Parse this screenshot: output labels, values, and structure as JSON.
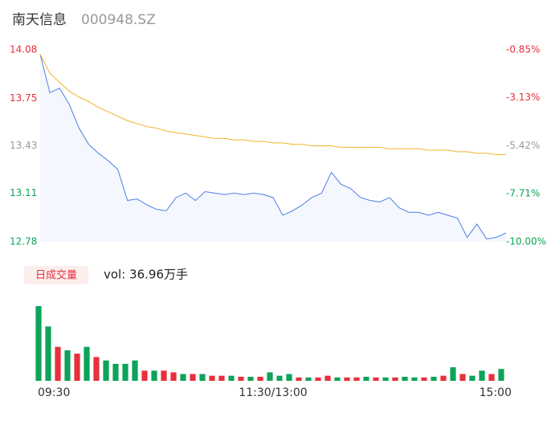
{
  "header": {
    "name": "南天信息",
    "code": "000948.SZ"
  },
  "chart_data": [
    {
      "type": "line",
      "categories": [
        "09:30",
        null,
        null,
        null,
        null,
        null,
        null,
        null,
        null,
        null,
        null,
        null,
        null,
        null,
        null,
        null,
        null,
        null,
        null,
        null,
        null,
        null,
        null,
        null,
        "11:30/13:00",
        null,
        null,
        null,
        null,
        null,
        null,
        null,
        null,
        null,
        null,
        null,
        null,
        null,
        null,
        null,
        null,
        null,
        null,
        null,
        null,
        null,
        null,
        null,
        "15:00"
      ],
      "ylim": [
        12.78,
        14.08
      ],
      "yticks": [
        14.08,
        13.75,
        13.43,
        13.11,
        12.78
      ],
      "ytick_colors": [
        "#e8303a",
        "#e8303a",
        "#999999",
        "#0ea35a",
        "#0ea35a"
      ],
      "y2lim": [
        -10,
        -0.85
      ],
      "y2ticks": [
        {
          "value": -0.85,
          "label": "-0.85%"
        },
        {
          "value": -3.13,
          "label": "-3.13%"
        },
        {
          "value": -5.42,
          "label": "-5.42%"
        },
        {
          "value": -7.71,
          "label": "-7.71%"
        },
        {
          "value": -10,
          "label": "-10.00%"
        }
      ],
      "series": [
        {
          "color": "#4f7de6",
          "values": [
            14.05,
            13.79,
            13.82,
            13.71,
            13.55,
            13.44,
            13.38,
            13.33,
            13.27,
            13.06,
            13.07,
            13.03,
            13.0,
            12.99,
            13.08,
            13.11,
            13.06,
            13.12,
            13.11,
            13.1,
            13.11,
            13.1,
            13.11,
            13.1,
            13.08,
            12.96,
            12.99,
            13.03,
            13.08,
            13.11,
            13.25,
            13.17,
            13.14,
            13.08,
            13.06,
            13.05,
            13.08,
            13.01,
            12.98,
            12.98,
            12.96,
            12.98,
            12.96,
            12.94,
            12.81,
            12.9,
            12.8,
            12.81,
            12.84
          ]
        },
        {
          "color": "#f0b429",
          "values": [
            14.05,
            13.92,
            13.86,
            13.8,
            13.76,
            13.73,
            13.69,
            13.66,
            13.63,
            13.6,
            13.58,
            13.56,
            13.55,
            13.53,
            13.52,
            13.51,
            13.5,
            13.49,
            13.48,
            13.48,
            13.47,
            13.47,
            13.46,
            13.46,
            13.45,
            13.45,
            13.44,
            13.44,
            13.43,
            13.43,
            13.43,
            13.42,
            13.42,
            13.42,
            13.42,
            13.42,
            13.41,
            13.41,
            13.41,
            13.41,
            13.4,
            13.4,
            13.4,
            13.39,
            13.39,
            13.38,
            13.38,
            13.37,
            13.37
          ]
        }
      ]
    },
    {
      "type": "bar",
      "label": "日成交量",
      "volume_text": "vol: 36.96万手",
      "values": [
        2.2,
        1.6,
        1.0,
        0.9,
        0.8,
        1.0,
        0.7,
        0.6,
        0.5,
        0.5,
        0.6,
        0.3,
        0.3,
        0.3,
        0.25,
        0.2,
        0.2,
        0.2,
        0.15,
        0.15,
        0.15,
        0.12,
        0.12,
        0.12,
        0.25,
        0.15,
        0.2,
        0.1,
        0.1,
        0.1,
        0.15,
        0.1,
        0.1,
        0.1,
        0.12,
        0.1,
        0.1,
        0.1,
        0.12,
        0.1,
        0.1,
        0.12,
        0.15,
        0.4,
        0.2,
        0.15,
        0.3,
        0.2,
        0.35
      ],
      "bar_colors": [
        "#0ea35a",
        "#0ea35a",
        "#e8303a",
        "#0ea35a",
        "#e8303a",
        "#0ea35a",
        "#e8303a",
        "#0ea35a",
        "#0ea35a",
        "#0ea35a",
        "#0ea35a",
        "#e8303a",
        "#0ea35a",
        "#e8303a",
        "#e8303a",
        "#0ea35a",
        "#e8303a",
        "#0ea35a",
        "#e8303a",
        "#e8303a",
        "#0ea35a",
        "#e8303a",
        "#0ea35a",
        "#e8303a",
        "#0ea35a",
        "#0ea35a",
        "#0ea35a",
        "#e8303a",
        "#0ea35a",
        "#e8303a",
        "#e8303a",
        "#0ea35a",
        "#e8303a",
        "#e8303a",
        "#0ea35a",
        "#e8303a",
        "#0ea35a",
        "#e8303a",
        "#0ea35a",
        "#0ea35a",
        "#e8303a",
        "#0ea35a",
        "#e8303a",
        "#0ea35a",
        "#e8303a",
        "#0ea35a",
        "#0ea35a",
        "#e8303a",
        "#0ea35a"
      ]
    }
  ]
}
